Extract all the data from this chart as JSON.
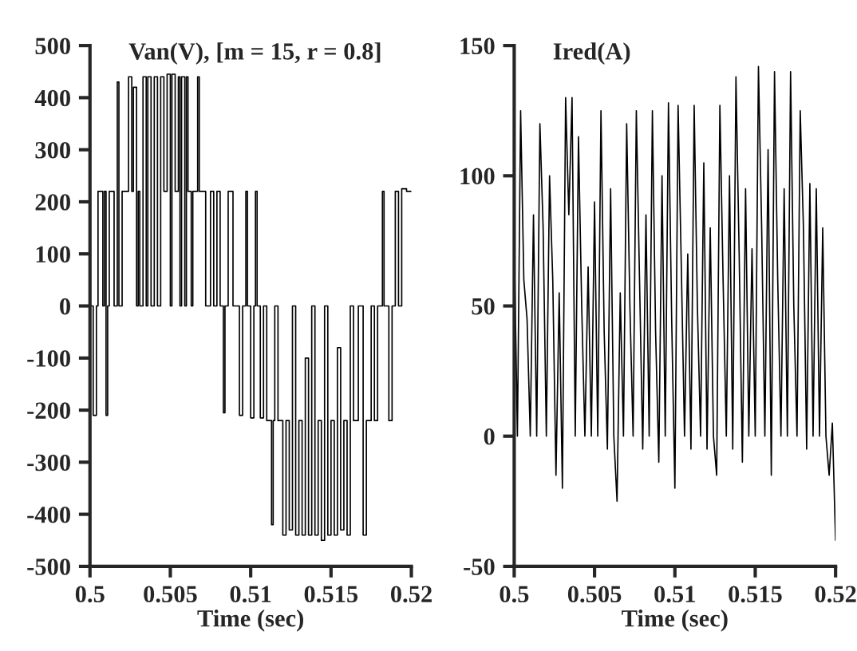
{
  "chart_data": [
    {
      "type": "step",
      "title": "Van(V), [m = 15, r = 0.8]",
      "xlabel": "Time (sec)",
      "xlim": [
        0.5,
        0.52
      ],
      "xticks": [
        0.5,
        0.505,
        0.51,
        0.515,
        0.52
      ],
      "ylim": [
        -500,
        500
      ],
      "yticks": [
        -500,
        -400,
        -300,
        -200,
        -100,
        0,
        100,
        200,
        300,
        400,
        500
      ],
      "grid": false,
      "legend": false,
      "series": [
        {
          "color": "#000000",
          "x": [
            0.5,
            0.5002,
            0.5004,
            0.5005,
            0.5008,
            0.5009,
            0.501,
            0.5011,
            0.5012,
            0.5015,
            0.5017,
            0.5018,
            0.502,
            0.5024,
            0.5026,
            0.5027,
            0.5029,
            0.503,
            0.5031,
            0.5033,
            0.5035,
            0.5036,
            0.5038,
            0.504,
            0.5042,
            0.5044,
            0.5046,
            0.5048,
            0.505,
            0.5051,
            0.5053,
            0.5055,
            0.5056,
            0.5057,
            0.5059,
            0.506,
            0.5061,
            0.5063,
            0.5064,
            0.5067,
            0.5068,
            0.5072,
            0.5075,
            0.5077,
            0.5079,
            0.5081,
            0.5083,
            0.5084,
            0.5086,
            0.5089,
            0.5093,
            0.5095,
            0.5097,
            0.5098,
            0.51,
            0.5102,
            0.5103,
            0.5104,
            0.5106,
            0.5108,
            0.511,
            0.5113,
            0.5114,
            0.5115,
            0.5117,
            0.512,
            0.5122,
            0.5124,
            0.5126,
            0.5128,
            0.513,
            0.5132,
            0.5134,
            0.5136,
            0.5138,
            0.514,
            0.5142,
            0.5144,
            0.5146,
            0.5148,
            0.515,
            0.5152,
            0.5154,
            0.5156,
            0.5158,
            0.516,
            0.5162,
            0.5164,
            0.5167,
            0.517,
            0.5172,
            0.5175,
            0.5177,
            0.5179,
            0.5182,
            0.5183,
            0.5186,
            0.5188,
            0.519,
            0.5192,
            0.5194,
            0.5197,
            0.52
          ],
          "values": [
            0,
            -210,
            0,
            220,
            0,
            220,
            -210,
            0,
            220,
            0,
            430,
            0,
            220,
            440,
            220,
            420,
            0,
            220,
            0,
            440,
            0,
            440,
            0,
            440,
            0,
            440,
            220,
            445,
            0,
            445,
            220,
            440,
            0,
            440,
            0,
            440,
            220,
            0,
            220,
            440,
            220,
            0,
            220,
            0,
            220,
            0,
            -205,
            0,
            220,
            0,
            -210,
            0,
            220,
            0,
            -215,
            0,
            220,
            0,
            -215,
            0,
            -220,
            -420,
            -220,
            0,
            -220,
            -440,
            -220,
            -430,
            0,
            -440,
            -220,
            -440,
            -100,
            -440,
            0,
            -440,
            -220,
            -450,
            0,
            -440,
            -220,
            -440,
            -80,
            -430,
            -220,
            -440,
            0,
            -220,
            0,
            -440,
            -220,
            0,
            -220,
            0,
            220,
            0,
            -220,
            0,
            220,
            0,
            225,
            220,
            220
          ]
        }
      ]
    },
    {
      "type": "line",
      "title": "Ired(A)",
      "xlabel": "Time (sec)",
      "xlim": [
        0.5,
        0.52
      ],
      "xticks": [
        0.5,
        0.505,
        0.51,
        0.515,
        0.52
      ],
      "ylim": [
        -50,
        150
      ],
      "yticks": [
        -50,
        0,
        50,
        100,
        150
      ],
      "grid": false,
      "legend": false,
      "series": [
        {
          "color": "#000000",
          "x": [
            0.5,
            0.5002,
            0.5004,
            0.5006,
            0.5008,
            0.501,
            0.5012,
            0.5014,
            0.5016,
            0.5018,
            0.502,
            0.5022,
            0.5024,
            0.5026,
            0.5028,
            0.503,
            0.5032,
            0.5034,
            0.5036,
            0.5038,
            0.504,
            0.5042,
            0.5044,
            0.5046,
            0.5048,
            0.505,
            0.5052,
            0.5054,
            0.5056,
            0.5058,
            0.506,
            0.5062,
            0.5064,
            0.5066,
            0.5068,
            0.507,
            0.5072,
            0.5074,
            0.5076,
            0.5078,
            0.508,
            0.5082,
            0.5084,
            0.5086,
            0.5088,
            0.509,
            0.5092,
            0.5094,
            0.5096,
            0.5098,
            0.51,
            0.5102,
            0.5104,
            0.5106,
            0.5108,
            0.511,
            0.5112,
            0.5114,
            0.5116,
            0.5118,
            0.512,
            0.5122,
            0.5124,
            0.5126,
            0.5128,
            0.513,
            0.5132,
            0.5134,
            0.5136,
            0.5138,
            0.514,
            0.5142,
            0.5144,
            0.5146,
            0.5148,
            0.515,
            0.5152,
            0.5154,
            0.5156,
            0.5158,
            0.516,
            0.5162,
            0.5164,
            0.5166,
            0.5168,
            0.517,
            0.5172,
            0.5174,
            0.5176,
            0.5178,
            0.518,
            0.5182,
            0.5184,
            0.5186,
            0.5188,
            0.519,
            0.5192,
            0.5194,
            0.5196,
            0.5198,
            0.52
          ],
          "values": [
            75,
            0,
            125,
            60,
            45,
            0,
            85,
            0,
            120,
            80,
            0,
            100,
            60,
            -15,
            55,
            -20,
            130,
            85,
            130,
            0,
            115,
            50,
            0,
            65,
            0,
            90,
            0,
            125,
            40,
            -5,
            95,
            0,
            -25,
            55,
            0,
            120,
            50,
            0,
            125,
            60,
            -5,
            85,
            0,
            125,
            40,
            -10,
            100,
            0,
            128,
            45,
            -20,
            127,
            65,
            0,
            70,
            -5,
            127,
            50,
            0,
            105,
            -5,
            80,
            0,
            -15,
            127,
            60,
            0,
            100,
            -5,
            138,
            70,
            -10,
            95,
            0,
            72,
            0,
            142,
            80,
            0,
            110,
            -15,
            140,
            60,
            0,
            95,
            0,
            140,
            50,
            0,
            125,
            80,
            -5,
            97,
            0,
            95,
            0,
            80,
            0,
            -15,
            5,
            -40
          ]
        }
      ]
    }
  ]
}
